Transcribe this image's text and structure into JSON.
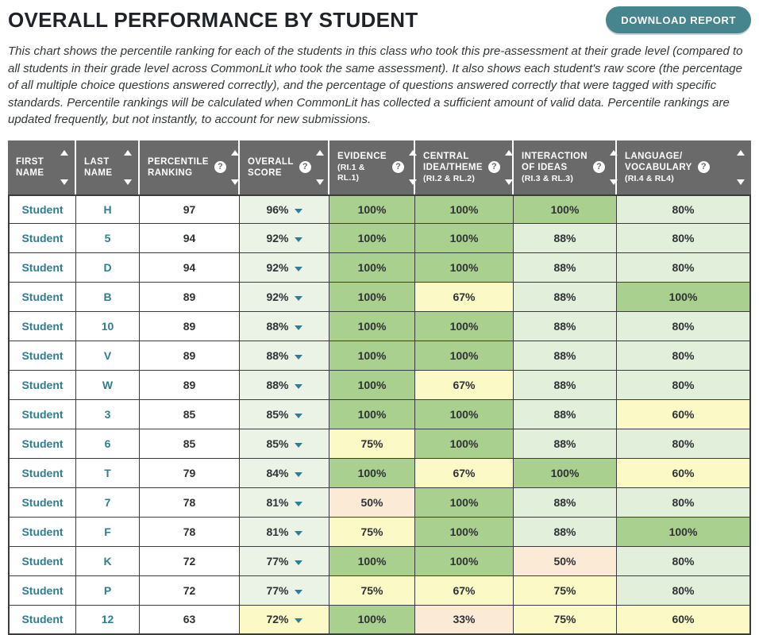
{
  "page": {
    "title": "OVERALL PERFORMANCE BY STUDENT",
    "download_button": "DOWNLOAD REPORT",
    "description": "This chart shows the percentile ranking for each of the students in this class who took this pre-assessment at their grade level (compared to all students in their grade level across CommonLit who took the same assessment). It also shows each student's raw score (the percentage of all multiple choice questions answered correctly), and the percentage of questions answered correctly that were tagged with specific standards. Percentile rankings will be calculated when CommonLit has collected a sufficient amount of valid data. Percentile rankings are updated frequently, but not instantly, to account for new submissions."
  },
  "colors": {
    "button_teal": "#47858e",
    "link_teal": "#2e7d91",
    "header_bg": "#6a6a6a",
    "levels": {
      "green": "#a9d08e",
      "light": "#e2efda",
      "pale": "#eaf3e6",
      "yellow": "#fbf9c6",
      "peach": "#fbead6"
    }
  },
  "table": {
    "columns": [
      {
        "key": "first-name",
        "lines": [
          "FIRST",
          "NAME"
        ],
        "sub": "",
        "help": false,
        "width": 86
      },
      {
        "key": "last-name",
        "lines": [
          "LAST",
          "NAME"
        ],
        "sub": "",
        "help": false,
        "width": 80
      },
      {
        "key": "percentile",
        "lines": [
          "PERCENTILE",
          "RANKING"
        ],
        "sub": "",
        "help": true,
        "width": 126
      },
      {
        "key": "overall",
        "lines": [
          "OVERALL",
          "SCORE"
        ],
        "sub": "",
        "help": true,
        "width": 113
      },
      {
        "key": "evidence",
        "lines": [
          "EVIDENCE"
        ],
        "sub": "(RI.1 & RL.1)",
        "help": true,
        "width": 108
      },
      {
        "key": "central-idea",
        "lines": [
          "CENTRAL",
          "IDEA/THEME"
        ],
        "sub": "(RI.2 & RL.2)",
        "help": true,
        "width": 124
      },
      {
        "key": "interaction",
        "lines": [
          "INTERACTION",
          "OF IDEAS"
        ],
        "sub": "(RI.3 & RL.3)",
        "help": true,
        "width": 130
      },
      {
        "key": "language",
        "lines": [
          "LANGUAGE/",
          "VOCABULARY"
        ],
        "sub": "(RI.4 & RL4)",
        "help": true,
        "width": 169
      }
    ],
    "rows": [
      {
        "first": "Student",
        "last": "H",
        "percentile": "97",
        "overall": "96%",
        "overall_bg": "pale",
        "cells": [
          {
            "v": "100%",
            "c": "green"
          },
          {
            "v": "100%",
            "c": "green"
          },
          {
            "v": "100%",
            "c": "green"
          },
          {
            "v": "80%",
            "c": "light"
          }
        ]
      },
      {
        "first": "Student",
        "last": "5",
        "percentile": "94",
        "overall": "92%",
        "overall_bg": "pale",
        "cells": [
          {
            "v": "100%",
            "c": "green"
          },
          {
            "v": "100%",
            "c": "green"
          },
          {
            "v": "88%",
            "c": "light"
          },
          {
            "v": "80%",
            "c": "light"
          }
        ]
      },
      {
        "first": "Student",
        "last": "D",
        "percentile": "94",
        "overall": "92%",
        "overall_bg": "pale",
        "cells": [
          {
            "v": "100%",
            "c": "green"
          },
          {
            "v": "100%",
            "c": "green"
          },
          {
            "v": "88%",
            "c": "light"
          },
          {
            "v": "80%",
            "c": "light"
          }
        ]
      },
      {
        "first": "Student",
        "last": "B",
        "percentile": "89",
        "overall": "92%",
        "overall_bg": "pale",
        "cells": [
          {
            "v": "100%",
            "c": "green"
          },
          {
            "v": "67%",
            "c": "yellow"
          },
          {
            "v": "88%",
            "c": "light"
          },
          {
            "v": "100%",
            "c": "green"
          }
        ]
      },
      {
        "first": "Student",
        "last": "10",
        "percentile": "89",
        "overall": "88%",
        "overall_bg": "pale",
        "cells": [
          {
            "v": "100%",
            "c": "green"
          },
          {
            "v": "100%",
            "c": "green"
          },
          {
            "v": "88%",
            "c": "light"
          },
          {
            "v": "80%",
            "c": "light"
          }
        ]
      },
      {
        "first": "Student",
        "last": "V",
        "percentile": "89",
        "overall": "88%",
        "overall_bg": "pale",
        "cells": [
          {
            "v": "100%",
            "c": "green"
          },
          {
            "v": "100%",
            "c": "green"
          },
          {
            "v": "88%",
            "c": "light"
          },
          {
            "v": "80%",
            "c": "light"
          }
        ]
      },
      {
        "first": "Student",
        "last": "W",
        "percentile": "89",
        "overall": "88%",
        "overall_bg": "pale",
        "cells": [
          {
            "v": "100%",
            "c": "green"
          },
          {
            "v": "67%",
            "c": "yellow"
          },
          {
            "v": "88%",
            "c": "light"
          },
          {
            "v": "80%",
            "c": "light"
          }
        ]
      },
      {
        "first": "Student",
        "last": "3",
        "percentile": "85",
        "overall": "85%",
        "overall_bg": "pale",
        "cells": [
          {
            "v": "100%",
            "c": "green"
          },
          {
            "v": "100%",
            "c": "green"
          },
          {
            "v": "88%",
            "c": "light"
          },
          {
            "v": "60%",
            "c": "yellow"
          }
        ]
      },
      {
        "first": "Student",
        "last": "6",
        "percentile": "85",
        "overall": "85%",
        "overall_bg": "pale",
        "cells": [
          {
            "v": "75%",
            "c": "yellow"
          },
          {
            "v": "100%",
            "c": "green"
          },
          {
            "v": "88%",
            "c": "light"
          },
          {
            "v": "80%",
            "c": "light"
          }
        ]
      },
      {
        "first": "Student",
        "last": "T",
        "percentile": "79",
        "overall": "84%",
        "overall_bg": "pale",
        "cells": [
          {
            "v": "100%",
            "c": "green"
          },
          {
            "v": "67%",
            "c": "yellow"
          },
          {
            "v": "100%",
            "c": "green"
          },
          {
            "v": "60%",
            "c": "yellow"
          }
        ]
      },
      {
        "first": "Student",
        "last": "7",
        "percentile": "78",
        "overall": "81%",
        "overall_bg": "pale",
        "cells": [
          {
            "v": "50%",
            "c": "peach"
          },
          {
            "v": "100%",
            "c": "green"
          },
          {
            "v": "88%",
            "c": "light"
          },
          {
            "v": "80%",
            "c": "light"
          }
        ]
      },
      {
        "first": "Student",
        "last": "F",
        "percentile": "78",
        "overall": "81%",
        "overall_bg": "pale",
        "cells": [
          {
            "v": "75%",
            "c": "yellow"
          },
          {
            "v": "100%",
            "c": "green"
          },
          {
            "v": "88%",
            "c": "light"
          },
          {
            "v": "100%",
            "c": "green"
          }
        ]
      },
      {
        "first": "Student",
        "last": "K",
        "percentile": "72",
        "overall": "77%",
        "overall_bg": "pale",
        "cells": [
          {
            "v": "100%",
            "c": "green"
          },
          {
            "v": "100%",
            "c": "green"
          },
          {
            "v": "50%",
            "c": "peach"
          },
          {
            "v": "80%",
            "c": "light"
          }
        ]
      },
      {
        "first": "Student",
        "last": "P",
        "percentile": "72",
        "overall": "77%",
        "overall_bg": "pale",
        "cells": [
          {
            "v": "75%",
            "c": "yellow"
          },
          {
            "v": "67%",
            "c": "yellow"
          },
          {
            "v": "75%",
            "c": "yellow"
          },
          {
            "v": "80%",
            "c": "light"
          }
        ]
      },
      {
        "first": "Student",
        "last": "12",
        "percentile": "63",
        "overall": "72%",
        "overall_bg": "yellow",
        "cells": [
          {
            "v": "100%",
            "c": "green"
          },
          {
            "v": "33%",
            "c": "peach"
          },
          {
            "v": "75%",
            "c": "yellow"
          },
          {
            "v": "60%",
            "c": "yellow"
          }
        ]
      }
    ]
  }
}
